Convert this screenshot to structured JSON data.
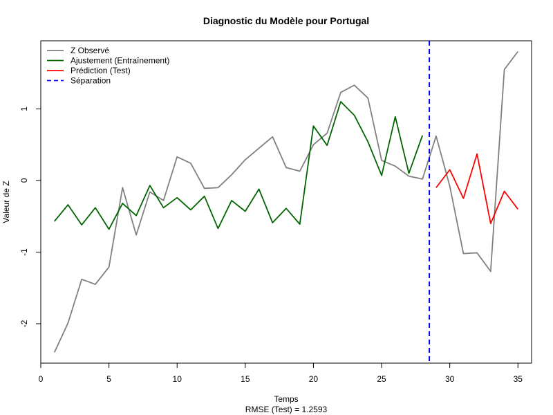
{
  "chart_data": {
    "type": "line",
    "title": "Diagnostic du Modèle pour Portugal",
    "xlabel": "Temps",
    "ylabel": "Valeur de Z",
    "subtitle": "RMSE (Test) = 1.2593",
    "xlim": [
      0,
      36
    ],
    "ylim": [
      -2.55,
      1.95
    ],
    "xticks": [
      0,
      5,
      10,
      15,
      20,
      25,
      30,
      35
    ],
    "yticks": [
      -2,
      -1,
      0,
      1
    ],
    "legend_position": "top-left",
    "separation_x": 28.5,
    "series": [
      {
        "name": "Z Observé",
        "color": "#808080",
        "style": "solid",
        "x": [
          1,
          2,
          3,
          4,
          5,
          6,
          7,
          8,
          9,
          10,
          11,
          12,
          13,
          14,
          15,
          16,
          17,
          18,
          19,
          20,
          21,
          22,
          23,
          24,
          25,
          26,
          27,
          28,
          29,
          30,
          31,
          32,
          33,
          34,
          35
        ],
        "values": [
          -2.4,
          -1.99,
          -1.38,
          -1.45,
          -1.21,
          -0.1,
          -0.76,
          -0.16,
          -0.28,
          0.33,
          0.24,
          -0.11,
          -0.1,
          0.08,
          0.29,
          0.45,
          0.61,
          0.18,
          0.13,
          0.5,
          0.66,
          1.23,
          1.33,
          1.15,
          0.28,
          0.2,
          0.06,
          0.02,
          0.62,
          -0.08,
          -1.02,
          -1.01,
          -1.27,
          1.55,
          1.8
        ]
      },
      {
        "name": "Ajustement (Entraînement)",
        "color": "#006400",
        "style": "solid",
        "x": [
          1,
          2,
          3,
          4,
          5,
          6,
          7,
          8,
          9,
          10,
          11,
          12,
          13,
          14,
          15,
          16,
          17,
          18,
          19,
          20,
          21,
          22,
          23,
          24,
          25,
          26,
          27,
          28
        ],
        "values": [
          -0.57,
          -0.34,
          -0.62,
          -0.38,
          -0.68,
          -0.32,
          -0.49,
          -0.07,
          -0.38,
          -0.24,
          -0.41,
          -0.22,
          -0.67,
          -0.28,
          -0.43,
          -0.12,
          -0.59,
          -0.39,
          -0.61,
          0.76,
          0.49,
          1.1,
          0.91,
          0.54,
          0.07,
          0.89,
          0.1,
          0.63
        ]
      },
      {
        "name": "Prédiction (Test)",
        "color": "#ff0000",
        "style": "solid",
        "x": [
          29,
          30,
          31,
          32,
          33,
          34,
          35
        ],
        "values": [
          -0.1,
          0.15,
          -0.25,
          0.37,
          -0.6,
          -0.15,
          -0.4
        ]
      }
    ],
    "legend": [
      {
        "label": "Z Observé",
        "color": "#808080",
        "style": "solid"
      },
      {
        "label": "Ajustement (Entraînement)",
        "color": "#006400",
        "style": "solid"
      },
      {
        "label": "Prédiction (Test)",
        "color": "#ff0000",
        "style": "solid"
      },
      {
        "label": "Séparation",
        "color": "#0000ff",
        "style": "dashed"
      }
    ]
  }
}
